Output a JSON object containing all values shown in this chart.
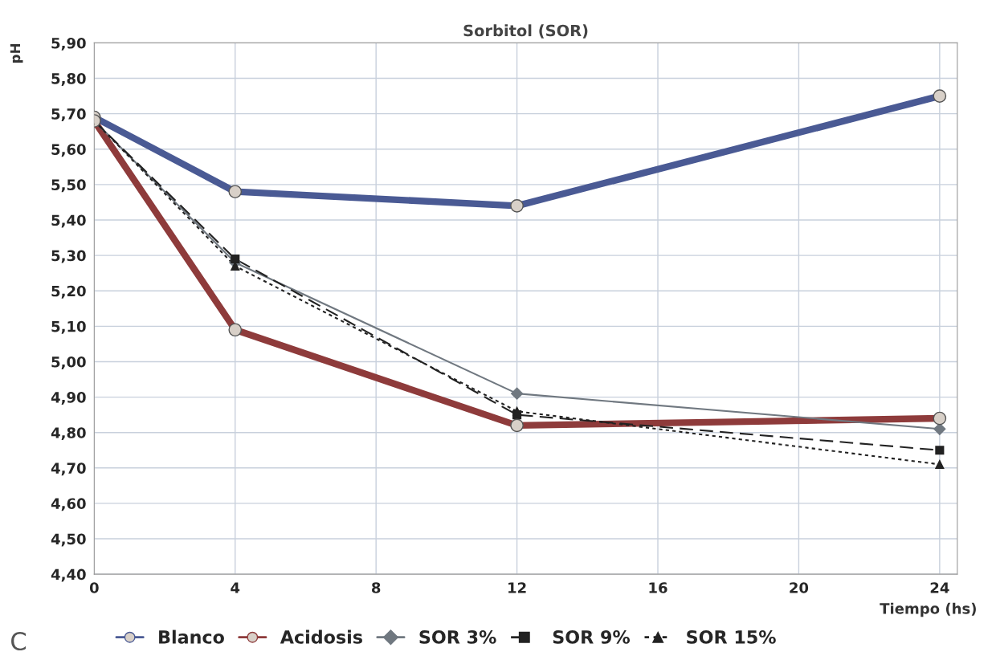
{
  "chart_data": {
    "type": "line",
    "title": "Sorbitol (SOR)",
    "xlabel": "Tiempo (hs)",
    "ylabel": "pH",
    "annotations": [
      "C"
    ],
    "x": [
      0,
      4,
      12,
      24
    ],
    "series": [
      {
        "name": "Blanco",
        "color": "#4a5a94",
        "values": [
          5.69,
          5.48,
          5.44,
          5.75
        ],
        "marker": "circle",
        "line_style": "solid"
      },
      {
        "name": "Acidosis",
        "color": "#8e3b3b",
        "values": [
          5.68,
          5.09,
          4.82,
          4.84
        ],
        "marker": "circle",
        "line_style": "solid"
      },
      {
        "name": "SOR 3%",
        "color": "#707880",
        "values": [
          5.68,
          5.28,
          4.91,
          4.81
        ],
        "marker": "diamond",
        "line_style": "solid"
      },
      {
        "name": "SOR 9%",
        "color": "#222222",
        "values": [
          5.68,
          5.29,
          4.85,
          4.75
        ],
        "marker": "square",
        "line_style": "dashed"
      },
      {
        "name": "SOR 15%",
        "color": "#222222",
        "values": [
          5.68,
          5.27,
          4.86,
          4.71
        ],
        "marker": "triangle",
        "line_style": "dotted"
      }
    ],
    "xlim": [
      0,
      24.5
    ],
    "xticks": [
      0,
      4,
      8,
      12,
      16,
      20,
      24
    ],
    "ylim": [
      4.4,
      5.9
    ],
    "yticks": [
      {
        "value": 4.4,
        "label": "4,40"
      },
      {
        "value": 4.5,
        "label": "4,50"
      },
      {
        "value": 4.6,
        "label": "4,60"
      },
      {
        "value": 4.7,
        "label": "4,70"
      },
      {
        "value": 4.8,
        "label": "4,80"
      },
      {
        "value": 4.9,
        "label": "4,90"
      },
      {
        "value": 5.0,
        "label": "5,00"
      },
      {
        "value": 5.1,
        "label": "5,10"
      },
      {
        "value": 5.2,
        "label": "5,20"
      },
      {
        "value": 5.3,
        "label": "5,30"
      },
      {
        "value": 5.4,
        "label": "5,40"
      },
      {
        "value": 5.5,
        "label": "5,50"
      },
      {
        "value": 5.6,
        "label": "5,60"
      },
      {
        "value": 5.7,
        "label": "5,70"
      },
      {
        "value": 5.8,
        "label": "5,80"
      },
      {
        "value": 5.9,
        "label": "5,90"
      }
    ],
    "grid": true,
    "legend": "bottom"
  }
}
